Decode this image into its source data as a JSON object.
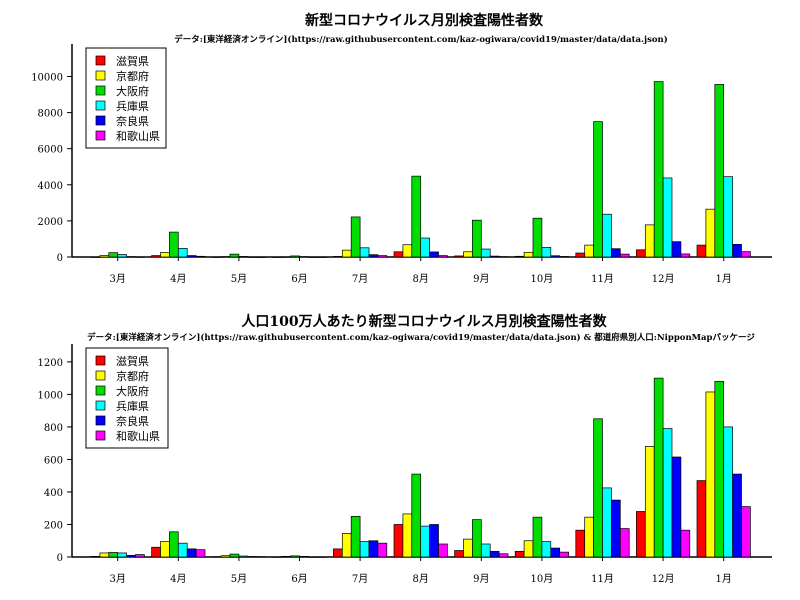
{
  "series_colors": [
    "#ff0000",
    "#ffff00",
    "#00dd00",
    "#00ffff",
    "#0000ff",
    "#ff00ff"
  ],
  "chart_data": [
    {
      "type": "bar",
      "title": "新型コロナウイルス月別検査陽性者数",
      "subtitle": "データ:[東洋経済オンライン](https://raw.githubusercontent.com/kaz-ogiwara/covid19/master/data/data.json)",
      "xlabel": "",
      "ylabel": "",
      "ylim": [
        0,
        11800
      ],
      "yticks": [
        0,
        2000,
        4000,
        6000,
        8000,
        10000
      ],
      "grid": false,
      "legend_position": "top-left",
      "categories": [
        "3月",
        "4月",
        "5月",
        "6月",
        "7月",
        "8月",
        "9月",
        "10月",
        "11月",
        "12月",
        "1月"
      ],
      "series": [
        {
          "name": "滋賀県",
          "values": [
            5,
            80,
            2,
            1,
            30,
            290,
            60,
            40,
            220,
            400,
            660
          ]
        },
        {
          "name": "京都府",
          "values": [
            80,
            250,
            20,
            10,
            380,
            680,
            290,
            260,
            660,
            1780,
            2650
          ]
        },
        {
          "name": "大阪府",
          "values": [
            240,
            1380,
            160,
            60,
            2220,
            4480,
            2040,
            2150,
            7500,
            9720,
            9560
          ]
        },
        {
          "name": "兵庫県",
          "values": [
            140,
            480,
            30,
            20,
            510,
            1050,
            440,
            530,
            2370,
            4380,
            4450
          ]
        },
        {
          "name": "奈良県",
          "values": [
            20,
            80,
            5,
            2,
            130,
            280,
            50,
            70,
            460,
            850,
            700
          ]
        },
        {
          "name": "和歌山県",
          "values": [
            10,
            40,
            2,
            1,
            80,
            80,
            20,
            30,
            160,
            170,
            300
          ]
        }
      ]
    },
    {
      "type": "bar",
      "title": "人口100万人あたり新型コロナウイルス月別検査陽性者数",
      "subtitle": "データ:[東洋経済オンライン](https://raw.githubusercontent.com/kaz-ogiwara/covid19/master/data/data.json) & 都道府県別人口:NipponMapパッケージ",
      "xlabel": "",
      "ylabel": "",
      "ylim": [
        0,
        1310
      ],
      "yticks": [
        0,
        200,
        400,
        600,
        800,
        1000,
        1200
      ],
      "grid": false,
      "legend_position": "top-left",
      "categories": [
        "3月",
        "4月",
        "5月",
        "6月",
        "7月",
        "8月",
        "9月",
        "10月",
        "11月",
        "12月",
        "1月"
      ],
      "series": [
        {
          "name": "滋賀県",
          "values": [
            4,
            60,
            2,
            1,
            50,
            200,
            40,
            35,
            165,
            280,
            470
          ]
        },
        {
          "name": "京都府",
          "values": [
            25,
            95,
            8,
            4,
            145,
            265,
            110,
            100,
            245,
            680,
            1015
          ]
        },
        {
          "name": "大阪府",
          "values": [
            28,
            155,
            18,
            7,
            250,
            510,
            230,
            245,
            850,
            1100,
            1080
          ]
        },
        {
          "name": "兵庫県",
          "values": [
            25,
            85,
            6,
            4,
            95,
            190,
            80,
            95,
            425,
            790,
            800
          ]
        },
        {
          "name": "奈良県",
          "values": [
            10,
            50,
            3,
            1,
            100,
            200,
            35,
            55,
            350,
            615,
            510
          ]
        },
        {
          "name": "和歌山県",
          "values": [
            15,
            45,
            2,
            1,
            85,
            80,
            20,
            30,
            175,
            165,
            310
          ]
        }
      ]
    }
  ]
}
